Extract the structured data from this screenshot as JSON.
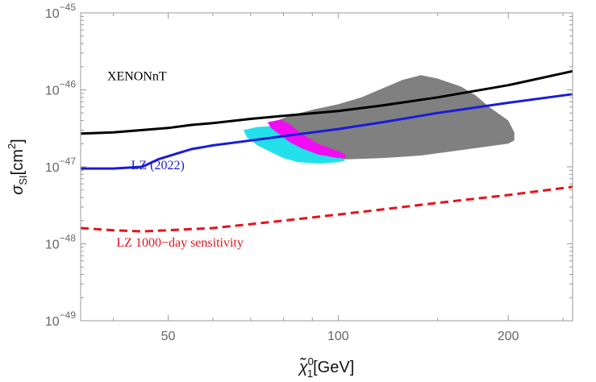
{
  "chart_data": {
    "type": "line",
    "xscale": "log",
    "yscale": "log",
    "xlim": [
      35,
      260
    ],
    "ylim": [
      1e-49,
      1e-45
    ],
    "xticks": [
      {
        "value": 50,
        "label": "50"
      },
      {
        "value": 100,
        "label": "100"
      },
      {
        "value": 200,
        "label": "200"
      }
    ],
    "yticks": [
      {
        "exp": -49,
        "base": "10",
        "label": "−49"
      },
      {
        "exp": -48,
        "base": "10",
        "label": "−48"
      },
      {
        "exp": -47,
        "base": "10",
        "label": "−47"
      },
      {
        "exp": -46,
        "base": "10",
        "label": "−46"
      },
      {
        "exp": -45,
        "base": "10",
        "label": "−45"
      }
    ],
    "xlabel": {
      "symbol": "χ̃",
      "sup": "0",
      "sub": "1",
      "unit": "[GeV]"
    },
    "ylabel": {
      "symbol": "σ",
      "sub": "SI",
      "unit_pre": "[cm",
      "unit_sup": "2",
      "unit_post": "]"
    },
    "grid": false,
    "series": [
      {
        "name": "XENONnT",
        "color": "#000000",
        "dash": false,
        "x": [
          35,
          40,
          45,
          50,
          55,
          60,
          70,
          80,
          100,
          120,
          150,
          200,
          260
        ],
        "y": [
          2.7e-47,
          2.8e-47,
          3e-47,
          3.2e-47,
          3.5e-47,
          3.7e-47,
          4.2e-47,
          4.6e-47,
          5.3e-47,
          6.3e-47,
          8e-47,
          1.15e-46,
          1.75e-46
        ]
      },
      {
        "name": "LZ (2022)",
        "color": "#1a1adb",
        "dash": false,
        "x": [
          35,
          40,
          45,
          48,
          52,
          55,
          60,
          70,
          80,
          100,
          120,
          150,
          200,
          260
        ],
        "y": [
          9.5e-48,
          9.5e-48,
          1e-47,
          1.25e-47,
          1.5e-47,
          1.7e-47,
          1.9e-47,
          2.2e-47,
          2.5e-47,
          3.1e-47,
          3.8e-47,
          5e-47,
          6.8e-47,
          8.8e-47
        ]
      },
      {
        "name": "LZ 1000−day sensitivity",
        "color": "#e8111b",
        "dash": true,
        "x": [
          35,
          40,
          45,
          50,
          55,
          60,
          70,
          80,
          100,
          120,
          150,
          200,
          260
        ],
        "y": [
          1.6e-48,
          1.5e-48,
          1.45e-48,
          1.5e-48,
          1.55e-48,
          1.6e-48,
          1.8e-48,
          2e-48,
          2.4e-48,
          2.8e-48,
          3.4e-48,
          4.3e-48,
          5.5e-48
        ]
      }
    ],
    "regions": [
      {
        "name": "gray",
        "color": "#808080",
        "x": [
          78,
          82,
          90,
          100,
          110,
          120,
          130,
          140,
          150,
          165,
          175,
          185,
          200,
          205,
          205,
          200,
          180,
          160,
          140,
          120,
          103,
          95,
          85,
          80,
          76
        ],
        "y": [
          4e-47,
          4.6e-47,
          5.5e-47,
          6.5e-47,
          8e-47,
          1.05e-46,
          1.35e-46,
          1.55e-46,
          1.4e-46,
          1.1e-46,
          8.5e-47,
          6e-47,
          4e-47,
          2.8e-47,
          2.2e-47,
          2e-47,
          1.8e-47,
          1.6e-47,
          1.4e-47,
          1.3e-47,
          1.25e-47,
          1.3e-47,
          1.6e-47,
          2.3e-47,
          3.2e-47
        ]
      },
      {
        "name": "cyan",
        "color": "#22e0ea",
        "x": [
          68,
          72,
          78,
          82,
          86,
          92,
          100,
          103,
          100,
          92,
          85,
          80,
          76,
          72,
          69
        ],
        "y": [
          3e-47,
          3.3e-47,
          3.4e-47,
          2.8e-47,
          2.2e-47,
          1.7e-47,
          1.35e-47,
          1.2e-47,
          1.15e-47,
          1.1e-47,
          1.15e-47,
          1.3e-47,
          1.55e-47,
          1.9e-47,
          2.4e-47
        ]
      },
      {
        "name": "magenta",
        "color": "#f20cf2",
        "x": [
          75,
          79,
          82,
          86,
          92,
          100,
          103,
          103,
          100,
          92,
          86,
          82,
          79,
          76
        ],
        "y": [
          3.8e-47,
          4.1e-47,
          3.6e-47,
          2.7e-47,
          2e-47,
          1.6e-47,
          1.45e-47,
          1.3e-47,
          1.3e-47,
          1.45e-47,
          1.75e-47,
          2.1e-47,
          2.6e-47,
          3.2e-47
        ]
      }
    ],
    "annotations": [
      {
        "text": "XENONnT",
        "color": "#000000",
        "x": 39,
        "y": 1.33e-46
      },
      {
        "text": "LZ (2022)",
        "color": "#1a1adb",
        "x": 43,
        "y": 9.3e-48
      },
      {
        "text": "LZ 1000−day sensitivity",
        "color": "#e8111b",
        "x": 40.5,
        "y": 9.2e-49
      }
    ]
  }
}
